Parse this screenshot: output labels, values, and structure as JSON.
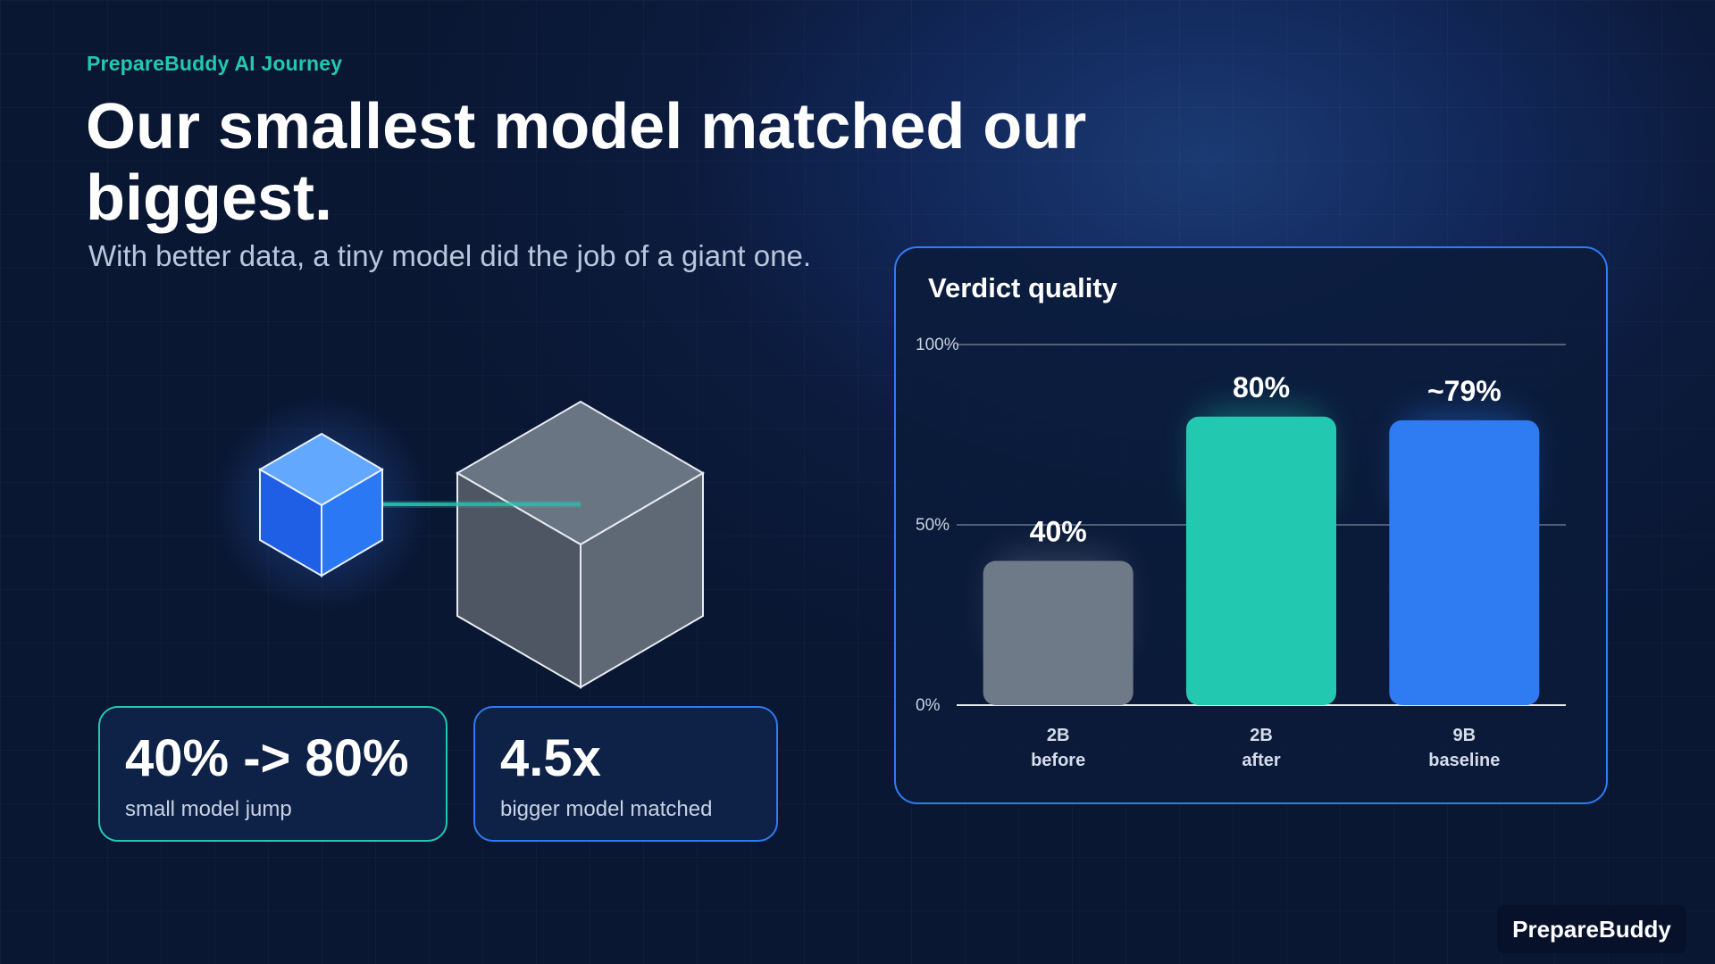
{
  "header": {
    "kicker": "PrepareBuddy AI Journey",
    "title": "Our smallest model matched our biggest.",
    "subtitle": "With better data, a tiny model did the job of a giant one."
  },
  "stats": [
    {
      "value": "40% -> 80%",
      "label": "small model jump"
    },
    {
      "value": "4.5x",
      "label": "bigger model matched"
    }
  ],
  "illustration": {
    "small_cube_color": "#2f7bf2",
    "big_cube_color": "#5b6573",
    "beam_color": "#22c8b0"
  },
  "chart_data": {
    "type": "bar",
    "title": "Verdict quality",
    "xlabel": "",
    "ylabel": "",
    "ylim": [
      0,
      100
    ],
    "yticks": [
      0,
      50,
      100
    ],
    "ytick_labels": [
      "0%",
      "50%",
      "100%"
    ],
    "grid": true,
    "categories": [
      {
        "line1": "2B",
        "line2": "before"
      },
      {
        "line1": "2B",
        "line2": "after"
      },
      {
        "line1": "9B",
        "line2": "baseline"
      }
    ],
    "values": [
      40,
      80,
      79
    ],
    "value_labels": [
      "40%",
      "80%",
      "~79%"
    ],
    "colors": [
      "#6e7a88",
      "#22c8b0",
      "#2f7bf2"
    ]
  },
  "footer": {
    "brand": "PrepareBuddy"
  }
}
